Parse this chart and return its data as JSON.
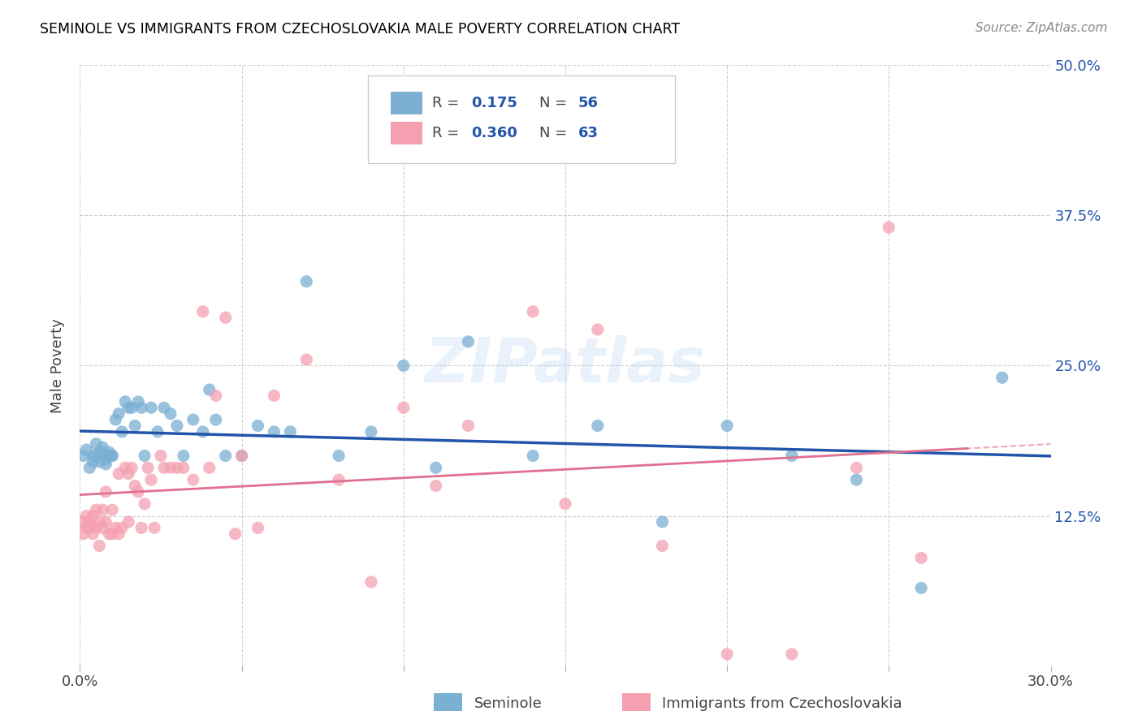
{
  "title": "SEMINOLE VS IMMIGRANTS FROM CZECHOSLOVAKIA MALE POVERTY CORRELATION CHART",
  "source": "Source: ZipAtlas.com",
  "ylabel": "Male Poverty",
  "x_min": 0.0,
  "x_max": 0.3,
  "y_min": 0.0,
  "y_max": 0.5,
  "x_ticks": [
    0.0,
    0.05,
    0.1,
    0.15,
    0.2,
    0.25,
    0.3
  ],
  "y_ticks": [
    0.0,
    0.125,
    0.25,
    0.375,
    0.5
  ],
  "y_tick_labels": [
    "",
    "12.5%",
    "25.0%",
    "37.5%",
    "50.0%"
  ],
  "seminole_color": "#7bafd4",
  "czech_color": "#f4a0b0",
  "seminole_line_color": "#2255aa",
  "czech_line_color": "#e07090",
  "seminole_R": 0.175,
  "seminole_N": 56,
  "czech_R": 0.36,
  "czech_N": 63,
  "watermark": "ZIPatlas",
  "legend_entries": [
    "Seminole",
    "Immigrants from Czechoslovakia"
  ],
  "seminole_x": [
    0.001,
    0.002,
    0.003,
    0.004,
    0.004,
    0.005,
    0.005,
    0.006,
    0.006,
    0.007,
    0.007,
    0.008,
    0.008,
    0.009,
    0.009,
    0.01,
    0.01,
    0.011,
    0.012,
    0.013,
    0.014,
    0.015,
    0.016,
    0.017,
    0.018,
    0.019,
    0.02,
    0.022,
    0.024,
    0.026,
    0.028,
    0.03,
    0.032,
    0.035,
    0.038,
    0.04,
    0.042,
    0.045,
    0.05,
    0.055,
    0.06,
    0.065,
    0.07,
    0.08,
    0.09,
    0.1,
    0.11,
    0.12,
    0.14,
    0.16,
    0.18,
    0.2,
    0.22,
    0.24,
    0.26,
    0.285
  ],
  "seminole_y": [
    0.175,
    0.18,
    0.165,
    0.17,
    0.175,
    0.175,
    0.185,
    0.178,
    0.17,
    0.178,
    0.182,
    0.168,
    0.172,
    0.175,
    0.178,
    0.175,
    0.175,
    0.205,
    0.21,
    0.195,
    0.22,
    0.215,
    0.215,
    0.2,
    0.22,
    0.215,
    0.175,
    0.215,
    0.195,
    0.215,
    0.21,
    0.2,
    0.175,
    0.205,
    0.195,
    0.23,
    0.205,
    0.175,
    0.175,
    0.2,
    0.195,
    0.195,
    0.32,
    0.175,
    0.195,
    0.25,
    0.165,
    0.27,
    0.175,
    0.2,
    0.12,
    0.2,
    0.175,
    0.155,
    0.065,
    0.24
  ],
  "czech_x": [
    0.001,
    0.001,
    0.002,
    0.002,
    0.003,
    0.003,
    0.004,
    0.004,
    0.005,
    0.005,
    0.006,
    0.006,
    0.007,
    0.007,
    0.008,
    0.008,
    0.009,
    0.01,
    0.01,
    0.011,
    0.012,
    0.012,
    0.013,
    0.014,
    0.015,
    0.015,
    0.016,
    0.017,
    0.018,
    0.019,
    0.02,
    0.021,
    0.022,
    0.023,
    0.025,
    0.026,
    0.028,
    0.03,
    0.032,
    0.035,
    0.038,
    0.04,
    0.042,
    0.045,
    0.048,
    0.05,
    0.055,
    0.06,
    0.07,
    0.08,
    0.09,
    0.1,
    0.11,
    0.12,
    0.14,
    0.15,
    0.16,
    0.18,
    0.2,
    0.22,
    0.24,
    0.25,
    0.26
  ],
  "czech_y": [
    0.11,
    0.12,
    0.115,
    0.125,
    0.115,
    0.12,
    0.11,
    0.125,
    0.115,
    0.13,
    0.1,
    0.12,
    0.115,
    0.13,
    0.12,
    0.145,
    0.11,
    0.11,
    0.13,
    0.115,
    0.11,
    0.16,
    0.115,
    0.165,
    0.12,
    0.16,
    0.165,
    0.15,
    0.145,
    0.115,
    0.135,
    0.165,
    0.155,
    0.115,
    0.175,
    0.165,
    0.165,
    0.165,
    0.165,
    0.155,
    0.295,
    0.165,
    0.225,
    0.29,
    0.11,
    0.175,
    0.115,
    0.225,
    0.255,
    0.155,
    0.07,
    0.215,
    0.15,
    0.2,
    0.295,
    0.135,
    0.28,
    0.1,
    0.01,
    0.01,
    0.165,
    0.365,
    0.09
  ]
}
